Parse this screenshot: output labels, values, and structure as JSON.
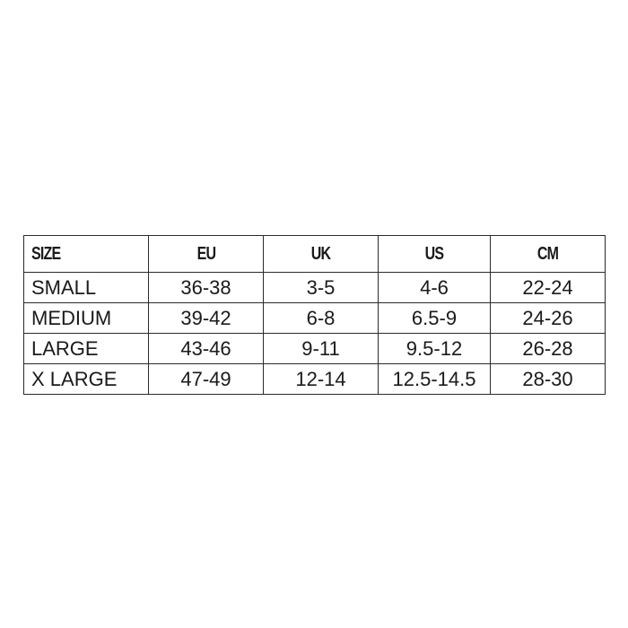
{
  "table": {
    "headers": [
      "SIZE",
      "EU",
      "UK",
      "US",
      "CM"
    ],
    "rows": [
      [
        "SMALL",
        "36-38",
        "3-5",
        "4-6",
        "22-24"
      ],
      [
        "MEDIUM",
        "39-42",
        "6-8",
        "6.5-9",
        "24-26"
      ],
      [
        "LARGE",
        "43-46",
        "9-11",
        "9.5-12",
        "26-28"
      ],
      [
        "X LARGE",
        "47-49",
        "12-14",
        "12.5-14.5",
        "28-30"
      ]
    ]
  }
}
